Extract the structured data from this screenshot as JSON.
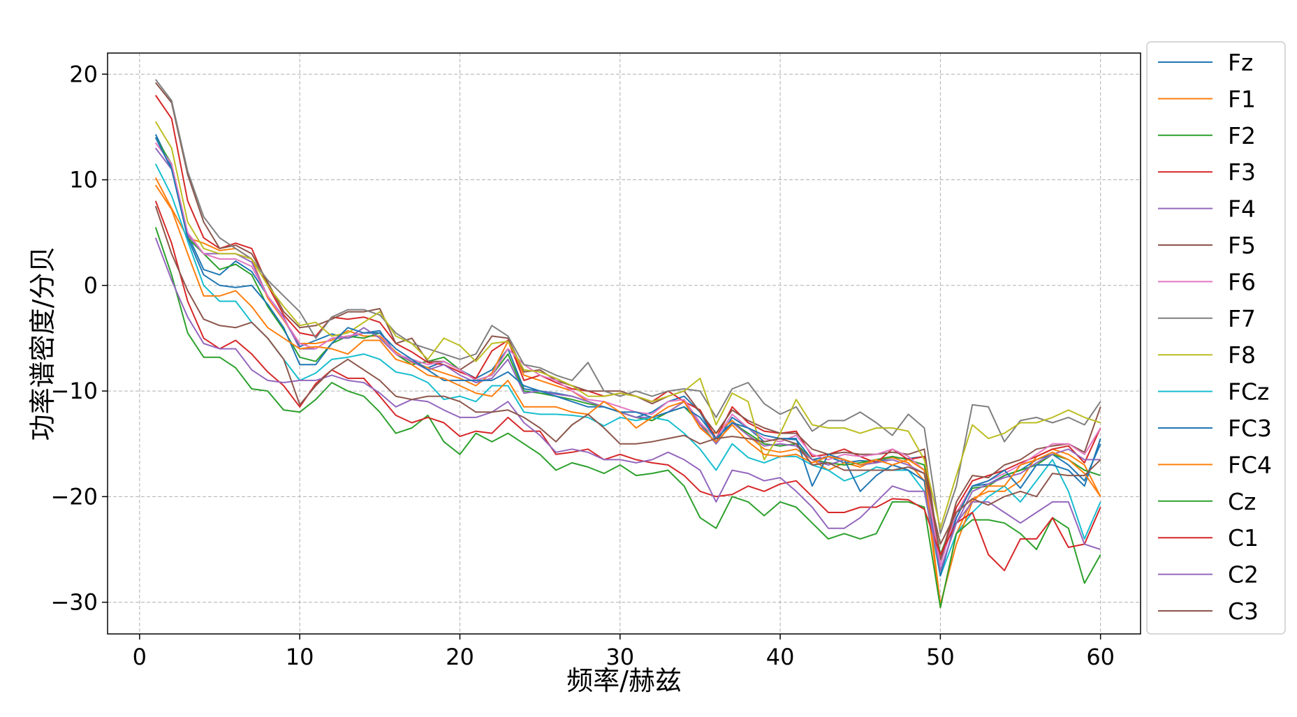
{
  "chart_data": {
    "type": "line",
    "title": "",
    "xlabel": "频率/赫兹",
    "ylabel": "功率谱密度/分贝",
    "xlim": [
      -2,
      62.5
    ],
    "ylim": [
      -33,
      22
    ],
    "xticks": [
      0,
      10,
      20,
      30,
      40,
      50,
      60
    ],
    "yticks": [
      -30,
      -20,
      -10,
      0,
      10,
      20
    ],
    "grid": true,
    "legend_position": "right-outside",
    "x": [
      1,
      2,
      3,
      4,
      5,
      6,
      7,
      8,
      9,
      10,
      11,
      12,
      13,
      14,
      15,
      16,
      17,
      18,
      19,
      20,
      21,
      22,
      23,
      24,
      25,
      26,
      27,
      28,
      29,
      30,
      31,
      32,
      33,
      34,
      35,
      36,
      37,
      38,
      39,
      40,
      41,
      42,
      43,
      44,
      45,
      46,
      47,
      48,
      49,
      50,
      51,
      52,
      53,
      54,
      55,
      56,
      57,
      58,
      59,
      60
    ],
    "series": [
      {
        "name": "Fz",
        "color": "#1f77b4",
        "values": [
          14.3,
          11.2,
          4.8,
          1.5,
          1.0,
          2.3,
          1.3,
          -1.0,
          -3.2,
          -5.8,
          -5.2,
          -4.6,
          -5.0,
          -4.5,
          -4.3,
          -6.5,
          -7.2,
          -7.8,
          -7.2,
          -8.0,
          -8.8,
          -8.0,
          -6.0,
          -9.8,
          -10.0,
          -10.2,
          -10.5,
          -11.0,
          -11.5,
          -12.0,
          -12.5,
          -12.0,
          -11.0,
          -10.5,
          -12.0,
          -14.8,
          -12.5,
          -13.5,
          -14.8,
          -14.5,
          -14.6,
          -16.5,
          -16.2,
          -16.8,
          -16.6,
          -16.7,
          -16.3,
          -16.4,
          -16.2,
          -26.0,
          -22.0,
          -19.0,
          -18.8,
          -18.0,
          -17.5,
          -16.5,
          -16.0,
          -17.0,
          -18.5,
          -15.0
        ]
      },
      {
        "name": "F1",
        "color": "#ff7f0e",
        "values": [
          10.2,
          7.3,
          4.5,
          4.0,
          3.3,
          3.5,
          2.5,
          -1.2,
          -3.3,
          -5.5,
          -5.5,
          -5.2,
          -4.3,
          -4.8,
          -4.8,
          -6.3,
          -7.3,
          -7.8,
          -8.3,
          -8.8,
          -9.5,
          -8.3,
          -5.3,
          -8.5,
          -9.0,
          -9.5,
          -10.0,
          -11.0,
          -11.5,
          -12.0,
          -12.5,
          -12.8,
          -12.0,
          -11.0,
          -13.5,
          -14.0,
          -12.8,
          -14.2,
          -15.5,
          -15.8,
          -15.5,
          -16.5,
          -17.5,
          -16.8,
          -17.2,
          -16.5,
          -16.3,
          -16.8,
          -18.5,
          -30.5,
          -23.5,
          -20.2,
          -19.5,
          -19.5,
          -18.5,
          -16.2,
          -15.5,
          -16.0,
          -17.0,
          -20.0
        ]
      },
      {
        "name": "F2",
        "color": "#2ca02c",
        "values": [
          14.0,
          11.5,
          4.5,
          3.0,
          1.5,
          2.0,
          1.0,
          -2.0,
          -4.2,
          -6.8,
          -7.2,
          -5.5,
          -4.8,
          -5.0,
          -4.5,
          -6.5,
          -7.5,
          -7.2,
          -6.8,
          -8.0,
          -9.0,
          -8.5,
          -6.5,
          -10.0,
          -10.2,
          -10.5,
          -10.8,
          -11.2,
          -11.5,
          -12.0,
          -12.5,
          -12.8,
          -12.0,
          -11.5,
          -13.0,
          -15.0,
          -13.0,
          -14.0,
          -15.0,
          -15.2,
          -15.0,
          -16.5,
          -16.8,
          -17.0,
          -16.8,
          -16.5,
          -16.2,
          -16.5,
          -17.0,
          -25.5,
          -21.5,
          -19.2,
          -19.0,
          -18.0,
          -17.5,
          -17.0,
          -16.0,
          -16.5,
          -17.5,
          -18.0
        ]
      },
      {
        "name": "F3",
        "color": "#d62728",
        "values": [
          18.0,
          15.8,
          8.0,
          4.5,
          3.5,
          4.0,
          3.5,
          0.0,
          -2.8,
          -4.5,
          -4.8,
          -3.0,
          -3.2,
          -3.0,
          -3.5,
          -5.5,
          -6.3,
          -7.3,
          -7.5,
          -8.2,
          -8.8,
          -6.2,
          -5.2,
          -9.0,
          -8.5,
          -9.2,
          -9.8,
          -10.0,
          -10.5,
          -10.2,
          -10.5,
          -11.0,
          -10.0,
          -11.0,
          -11.8,
          -14.5,
          -11.5,
          -13.0,
          -13.8,
          -14.0,
          -13.8,
          -16.2,
          -16.0,
          -15.5,
          -16.2,
          -16.8,
          -15.5,
          -16.5,
          -16.2,
          -26.0,
          -21.0,
          -18.5,
          -18.0,
          -17.5,
          -16.8,
          -16.2,
          -15.5,
          -15.2,
          -16.8,
          -13.5
        ]
      },
      {
        "name": "F4",
        "color": "#9467bd",
        "values": [
          13.0,
          11.0,
          4.8,
          3.0,
          3.0,
          3.0,
          2.2,
          -1.0,
          -3.0,
          -6.0,
          -6.0,
          -5.0,
          -5.0,
          -4.0,
          -5.0,
          -6.5,
          -7.2,
          -8.0,
          -7.5,
          -8.5,
          -9.2,
          -8.8,
          -7.0,
          -10.2,
          -10.0,
          -10.3,
          -10.5,
          -11.0,
          -11.5,
          -12.0,
          -12.5,
          -12.5,
          -12.0,
          -11.0,
          -13.2,
          -15.0,
          -13.0,
          -14.2,
          -15.2,
          -15.0,
          -15.2,
          -16.5,
          -17.0,
          -16.5,
          -17.0,
          -16.8,
          -16.5,
          -17.0,
          -17.8,
          -27.0,
          -22.5,
          -19.5,
          -18.8,
          -18.2,
          -17.8,
          -16.8,
          -16.0,
          -15.5,
          -16.5,
          -16.5
        ]
      },
      {
        "name": "F5",
        "color": "#8c564b",
        "values": [
          19.2,
          17.3,
          10.5,
          6.0,
          3.5,
          3.8,
          3.0,
          0.3,
          -2.5,
          -4.0,
          -3.8,
          -3.2,
          -2.5,
          -2.5,
          -2.2,
          -5.5,
          -5.0,
          -7.2,
          -7.2,
          -8.0,
          -7.0,
          -4.8,
          -5.0,
          -8.2,
          -8.0,
          -9.0,
          -9.5,
          -10.0,
          -10.0,
          -10.0,
          -10.5,
          -11.2,
          -10.5,
          -10.0,
          -12.0,
          -14.0,
          -11.8,
          -12.8,
          -13.5,
          -14.0,
          -14.0,
          -15.5,
          -16.0,
          -15.8,
          -16.0,
          -16.0,
          -15.8,
          -16.0,
          -15.5,
          -26.0,
          -20.5,
          -18.0,
          -18.2,
          -17.0,
          -16.5,
          -15.5,
          -15.2,
          -15.0,
          -15.8,
          -11.5
        ]
      },
      {
        "name": "F6",
        "color": "#e377c2",
        "values": [
          13.5,
          11.5,
          5.0,
          3.0,
          2.5,
          2.5,
          1.8,
          -1.0,
          -3.2,
          -5.5,
          -6.0,
          -5.0,
          -4.8,
          -4.5,
          -4.5,
          -6.5,
          -7.0,
          -7.5,
          -7.2,
          -8.0,
          -9.0,
          -8.5,
          -6.0,
          -7.5,
          -8.5,
          -9.0,
          -10.0,
          -10.8,
          -11.0,
          -11.5,
          -12.0,
          -12.2,
          -11.0,
          -10.8,
          -13.0,
          -14.5,
          -12.2,
          -13.5,
          -14.5,
          -14.8,
          -14.2,
          -16.0,
          -16.5,
          -16.0,
          -16.2,
          -16.0,
          -15.5,
          -16.2,
          -17.5,
          -26.5,
          -21.5,
          -19.0,
          -18.5,
          -17.8,
          -17.0,
          -16.0,
          -15.0,
          -15.0,
          -16.0,
          -13.5
        ]
      },
      {
        "name": "F7",
        "color": "#7f7f7f",
        "values": [
          19.5,
          17.5,
          10.8,
          6.5,
          4.5,
          3.5,
          2.5,
          0.5,
          -1.0,
          -2.5,
          -5.0,
          -3.0,
          -2.3,
          -2.3,
          -2.8,
          -4.5,
          -5.5,
          -6.0,
          -6.5,
          -7.0,
          -6.5,
          -3.8,
          -4.8,
          -7.5,
          -7.8,
          -8.5,
          -9.0,
          -7.3,
          -10.0,
          -10.5,
          -10.0,
          -10.5,
          -10.0,
          -9.8,
          -10.0,
          -12.5,
          -9.8,
          -9.2,
          -11.2,
          -12.2,
          -11.5,
          -13.8,
          -12.8,
          -12.8,
          -12.0,
          -13.0,
          -14.2,
          -12.2,
          -13.5,
          -23.5,
          -19.0,
          -11.3,
          -11.5,
          -14.8,
          -12.8,
          -12.5,
          -13.0,
          -12.5,
          -13.2,
          -11.0
        ]
      },
      {
        "name": "F8",
        "color": "#bcbd22",
        "values": [
          15.5,
          13.0,
          6.0,
          3.5,
          3.0,
          3.0,
          2.5,
          0.0,
          -2.0,
          -3.8,
          -3.5,
          -4.8,
          -4.5,
          -3.5,
          -2.5,
          -4.8,
          -5.5,
          -7.0,
          -5.0,
          -5.7,
          -7.2,
          -5.5,
          -5.3,
          -8.0,
          -8.2,
          -8.8,
          -9.5,
          -10.5,
          -10.5,
          -10.2,
          -10.5,
          -11.0,
          -10.5,
          -10.0,
          -8.8,
          -13.2,
          -10.2,
          -11.0,
          -16.5,
          -14.0,
          -10.8,
          -13.2,
          -13.5,
          -13.5,
          -14.0,
          -13.5,
          -13.5,
          -13.8,
          -16.5,
          -23.0,
          -18.0,
          -13.2,
          -14.5,
          -14.0,
          -13.0,
          -13.0,
          -12.5,
          -11.8,
          -12.5,
          -13.0
        ]
      },
      {
        "name": "FCz",
        "color": "#17becf",
        "values": [
          11.5,
          8.5,
          4.2,
          0.0,
          -1.5,
          -1.5,
          -3.5,
          -5.0,
          -7.0,
          -9.0,
          -8.3,
          -7.0,
          -6.8,
          -6.5,
          -7.0,
          -8.2,
          -8.5,
          -9.2,
          -10.8,
          -10.5,
          -11.0,
          -9.5,
          -9.5,
          -12.0,
          -12.2,
          -12.2,
          -12.3,
          -12.5,
          -13.3,
          -12.5,
          -12.8,
          -12.5,
          -12.8,
          -14.0,
          -15.5,
          -17.5,
          -15.0,
          -16.3,
          -16.8,
          -16.2,
          -16.2,
          -17.0,
          -17.5,
          -18.5,
          -18.0,
          -17.2,
          -17.5,
          -17.5,
          -19.5,
          -27.5,
          -23.5,
          -21.5,
          -20.0,
          -19.0,
          -20.5,
          -18.5,
          -16.5,
          -19.5,
          -24.0,
          -20.5
        ]
      },
      {
        "name": "FC3",
        "color": "#1f77b4",
        "values": [
          14.0,
          11.0,
          4.5,
          1.0,
          0.0,
          -0.2,
          0.0,
          -1.8,
          -4.0,
          -7.5,
          -7.5,
          -5.5,
          -4.0,
          -4.5,
          -4.5,
          -6.0,
          -7.0,
          -8.0,
          -9.0,
          -9.0,
          -9.0,
          -9.0,
          -8.2,
          -9.5,
          -10.0,
          -10.5,
          -11.0,
          -11.5,
          -11.5,
          -12.0,
          -12.0,
          -12.5,
          -12.0,
          -11.5,
          -12.5,
          -14.5,
          -13.0,
          -13.5,
          -14.2,
          -14.5,
          -14.5,
          -19.0,
          -16.0,
          -16.5,
          -19.5,
          -18.0,
          -17.0,
          -17.5,
          -18.5,
          -27.5,
          -22.0,
          -19.0,
          -18.5,
          -17.5,
          -19.2,
          -17.0,
          -17.0,
          -17.5,
          -19.0,
          -14.5
        ]
      },
      {
        "name": "FC4",
        "color": "#ff7f0e",
        "values": [
          9.5,
          7.2,
          3.0,
          -1.0,
          -1.0,
          -0.5,
          -2.0,
          -4.0,
          -5.0,
          -6.0,
          -5.8,
          -6.0,
          -6.5,
          -5.2,
          -5.2,
          -7.0,
          -7.5,
          -8.5,
          -8.8,
          -9.5,
          -10.2,
          -10.5,
          -9.0,
          -11.5,
          -11.5,
          -11.5,
          -12.0,
          -12.2,
          -11.0,
          -12.0,
          -13.5,
          -12.5,
          -11.5,
          -11.0,
          -13.5,
          -14.8,
          -13.2,
          -14.8,
          -16.0,
          -16.2,
          -16.0,
          -16.8,
          -16.2,
          -16.5,
          -17.0,
          -16.5,
          -17.0,
          -16.5,
          -17.5,
          -30.2,
          -24.5,
          -20.5,
          -19.0,
          -19.0,
          -17.0,
          -16.5,
          -15.8,
          -16.5,
          -17.8,
          -20.0
        ]
      },
      {
        "name": "Cz",
        "color": "#2ca02c",
        "values": [
          5.5,
          1.0,
          -4.5,
          -6.8,
          -6.8,
          -7.8,
          -9.8,
          -10.0,
          -11.8,
          -12.0,
          -10.8,
          -9.2,
          -10.0,
          -10.5,
          -12.0,
          -14.0,
          -13.5,
          -12.3,
          -14.8,
          -16.0,
          -14.0,
          -14.8,
          -14.0,
          -15.0,
          -16.0,
          -17.5,
          -16.8,
          -17.2,
          -17.8,
          -17.0,
          -18.0,
          -17.8,
          -17.5,
          -19.0,
          -22.0,
          -23.0,
          -20.0,
          -20.5,
          -21.8,
          -20.5,
          -21.0,
          -22.5,
          -24.0,
          -23.5,
          -24.0,
          -23.5,
          -20.5,
          -20.5,
          -21.0,
          -30.5,
          -23.5,
          -22.2,
          -22.2,
          -22.5,
          -23.5,
          -25.0,
          -22.0,
          -23.0,
          -28.2,
          -25.5
        ]
      },
      {
        "name": "C1",
        "color": "#d62728",
        "values": [
          8.0,
          4.0,
          -1.5,
          -5.0,
          -6.0,
          -5.2,
          -6.5,
          -8.2,
          -9.5,
          -11.5,
          -9.3,
          -8.0,
          -8.8,
          -8.8,
          -10.5,
          -12.3,
          -13.0,
          -12.5,
          -13.0,
          -14.3,
          -13.8,
          -14.0,
          -12.5,
          -13.8,
          -13.8,
          -16.0,
          -15.8,
          -15.5,
          -16.5,
          -16.0,
          -16.5,
          -16.8,
          -17.0,
          -18.0,
          -19.5,
          -20.0,
          -19.8,
          -19.0,
          -19.5,
          -18.8,
          -18.5,
          -20.0,
          -21.5,
          -21.5,
          -21.0,
          -21.0,
          -20.2,
          -20.3,
          -21.2,
          -25.5,
          -22.5,
          -21.5,
          -25.5,
          -27.0,
          -24.0,
          -24.0,
          -22.0,
          -24.8,
          -24.5,
          -21.0
        ]
      },
      {
        "name": "C2",
        "color": "#9467bd",
        "values": [
          4.5,
          0.5,
          -3.0,
          -5.5,
          -6.0,
          -6.0,
          -8.0,
          -9.0,
          -9.2,
          -9.0,
          -9.0,
          -8.5,
          -9.0,
          -9.2,
          -10.2,
          -11.5,
          -10.8,
          -11.0,
          -11.8,
          -12.5,
          -12.5,
          -12.0,
          -11.0,
          -13.0,
          -14.2,
          -15.8,
          -15.5,
          -15.8,
          -16.5,
          -16.5,
          -16.8,
          -16.5,
          -15.8,
          -16.5,
          -17.5,
          -20.5,
          -17.5,
          -17.8,
          -18.5,
          -18.2,
          -19.5,
          -21.0,
          -23.0,
          -23.0,
          -22.0,
          -20.5,
          -19.0,
          -19.5,
          -19.5,
          -27.0,
          -22.5,
          -20.5,
          -20.5,
          -21.5,
          -22.5,
          -21.5,
          -20.5,
          -20.5,
          -24.5,
          -25.0
        ]
      },
      {
        "name": "C3",
        "color": "#8c564b",
        "values": [
          7.5,
          3.0,
          -0.5,
          -3.2,
          -3.8,
          -4.0,
          -3.5,
          -5.0,
          -7.0,
          -11.3,
          -9.5,
          -8.0,
          -7.0,
          -8.0,
          -9.0,
          -10.5,
          -10.8,
          -10.5,
          -10.5,
          -11.0,
          -12.0,
          -12.0,
          -11.8,
          -12.5,
          -13.5,
          -14.8,
          -13.2,
          -12.2,
          -13.5,
          -15.0,
          -15.0,
          -14.8,
          -14.5,
          -14.2,
          -15.0,
          -14.5,
          -14.3,
          -14.5,
          -14.8,
          -14.5,
          -15.0,
          -17.0,
          -16.8,
          -17.5,
          -17.5,
          -17.5,
          -17.5,
          -17.2,
          -17.8,
          -24.5,
          -21.5,
          -20.2,
          -20.8,
          -20.0,
          -19.5,
          -20.0,
          -17.8,
          -18.0,
          -18.0,
          -16.5
        ]
      }
    ]
  }
}
